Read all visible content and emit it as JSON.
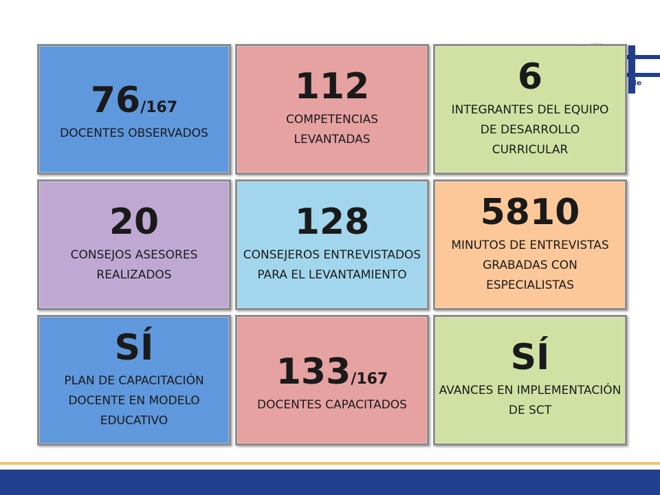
{
  "slide": {
    "tiles": [
      {
        "number": "76",
        "suffix": "/167",
        "label": "DOCENTES OBSERVADOS",
        "color": "#5f98dd"
      },
      {
        "number": "112",
        "suffix": "",
        "label": "COMPETENCIAS LEVANTADAS",
        "color": "#e6a1a1"
      },
      {
        "number": "6",
        "suffix": "",
        "label": "INTEGRANTES DEL EQUIPO DE DESARROLLO CURRICULAR",
        "color": "#d1e1a3"
      },
      {
        "number": "20",
        "suffix": "",
        "label": "CONSEJOS ASESORES REALIZADOS",
        "color": "#bfa9d3"
      },
      {
        "number": "128",
        "suffix": "",
        "label": "CONSEJEROS ENTREVISTADOS PARA EL LEVANTAMIENTO",
        "color": "#a2d6ec"
      },
      {
        "number": "5810",
        "suffix": "",
        "label": "MINUTOS DE ENTREVISTAS GRABADAS CON ESPECIALISTAS",
        "color": "#fcc899"
      },
      {
        "number": "SÍ",
        "suffix": "",
        "label": "PLAN DE CAPACITACIÓN DOCENTE EN MODELO EDUCATIVO",
        "color": "#5f98dd"
      },
      {
        "number": "133",
        "suffix": "/167",
        "label": "DOCENTES CAPACITADOS",
        "color": "#e6a1a1"
      },
      {
        "number": "SÍ",
        "suffix": "",
        "label": "AVANCES EN IMPLEMENTACIÓN DE SCT",
        "color": "#d1e1a3"
      }
    ],
    "logo_text": "de",
    "colors": {
      "footer_bar": "#213f8f",
      "footer_line": "#f3c465",
      "logo_blue": "#213f8f",
      "logo_gold": "#f3c465"
    }
  }
}
